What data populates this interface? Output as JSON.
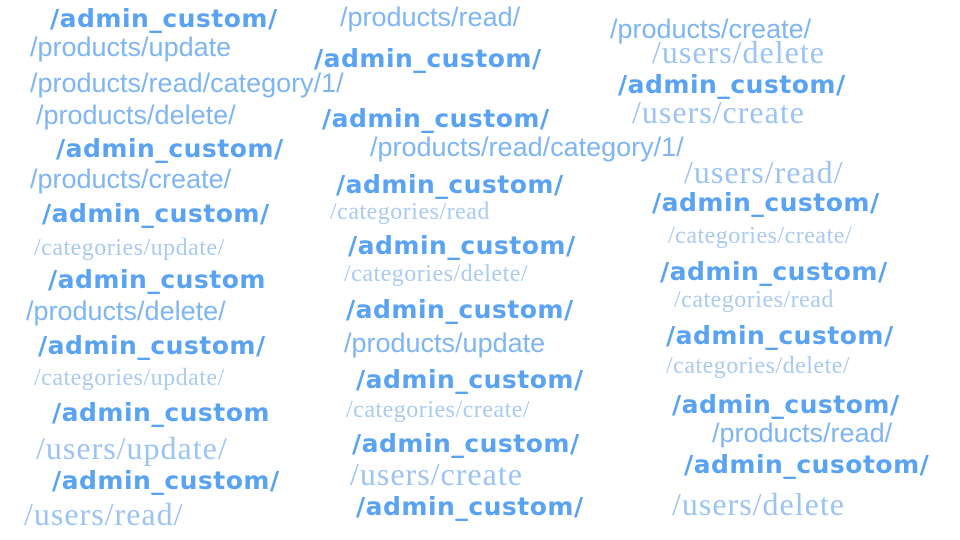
{
  "words": {
    "w1": "/admin_custom/",
    "w2": "/products/read/",
    "w3": "/products/create/",
    "w4": "/products/update",
    "w5": "/users/delete",
    "w6": "/admin_custom/",
    "w7": "/products/read/category/1/",
    "w8": "/admin_custom/",
    "w9": "/products/delete/",
    "w10": "/users/create",
    "w11": "/admin_custom/",
    "w12": "/admin_custom/",
    "w13": "/products/read/category/1/",
    "w14": "/users/read/",
    "w15": "/products/create/",
    "w16": "/admin_custom/",
    "w17": "/admin_custom/",
    "w18": "/admin_custom/",
    "w19": "/categories/read",
    "w20": "/categories/create/",
    "w21": "/categories/update/",
    "w22": "/admin_custom/",
    "w23": "/admin_custom",
    "w24": "/admin_custom/",
    "w25": "/categories/delete/",
    "w26": "/categories/read",
    "w27": "/products/delete/",
    "w28": "/admin_custom/",
    "w29": "/admin_custom/",
    "w30": "/admin_custom/",
    "w31": "/products/update",
    "w32": "/categories/update/",
    "w33": "/categories/delete/",
    "w34": "/admin_custom/",
    "w35": "/admin_custom",
    "w36": "/categories/create/",
    "w37": "/admin_custom/",
    "w38": "/products/read/",
    "w39": "/users/update/",
    "w40": "/admin_custom/",
    "w41": "/admin_cusotom/",
    "w42": "/users/create",
    "w43": "/admin_custom/",
    "w44": "/admin_custom/",
    "w45": "/users/delete",
    "w46": "/users/read/"
  },
  "colors": {
    "admin": "#5aa3f2",
    "products": "#7fb6f2",
    "categories": "#a9cbf0",
    "users": "#9cc4f2",
    "background": "#ffffff"
  }
}
